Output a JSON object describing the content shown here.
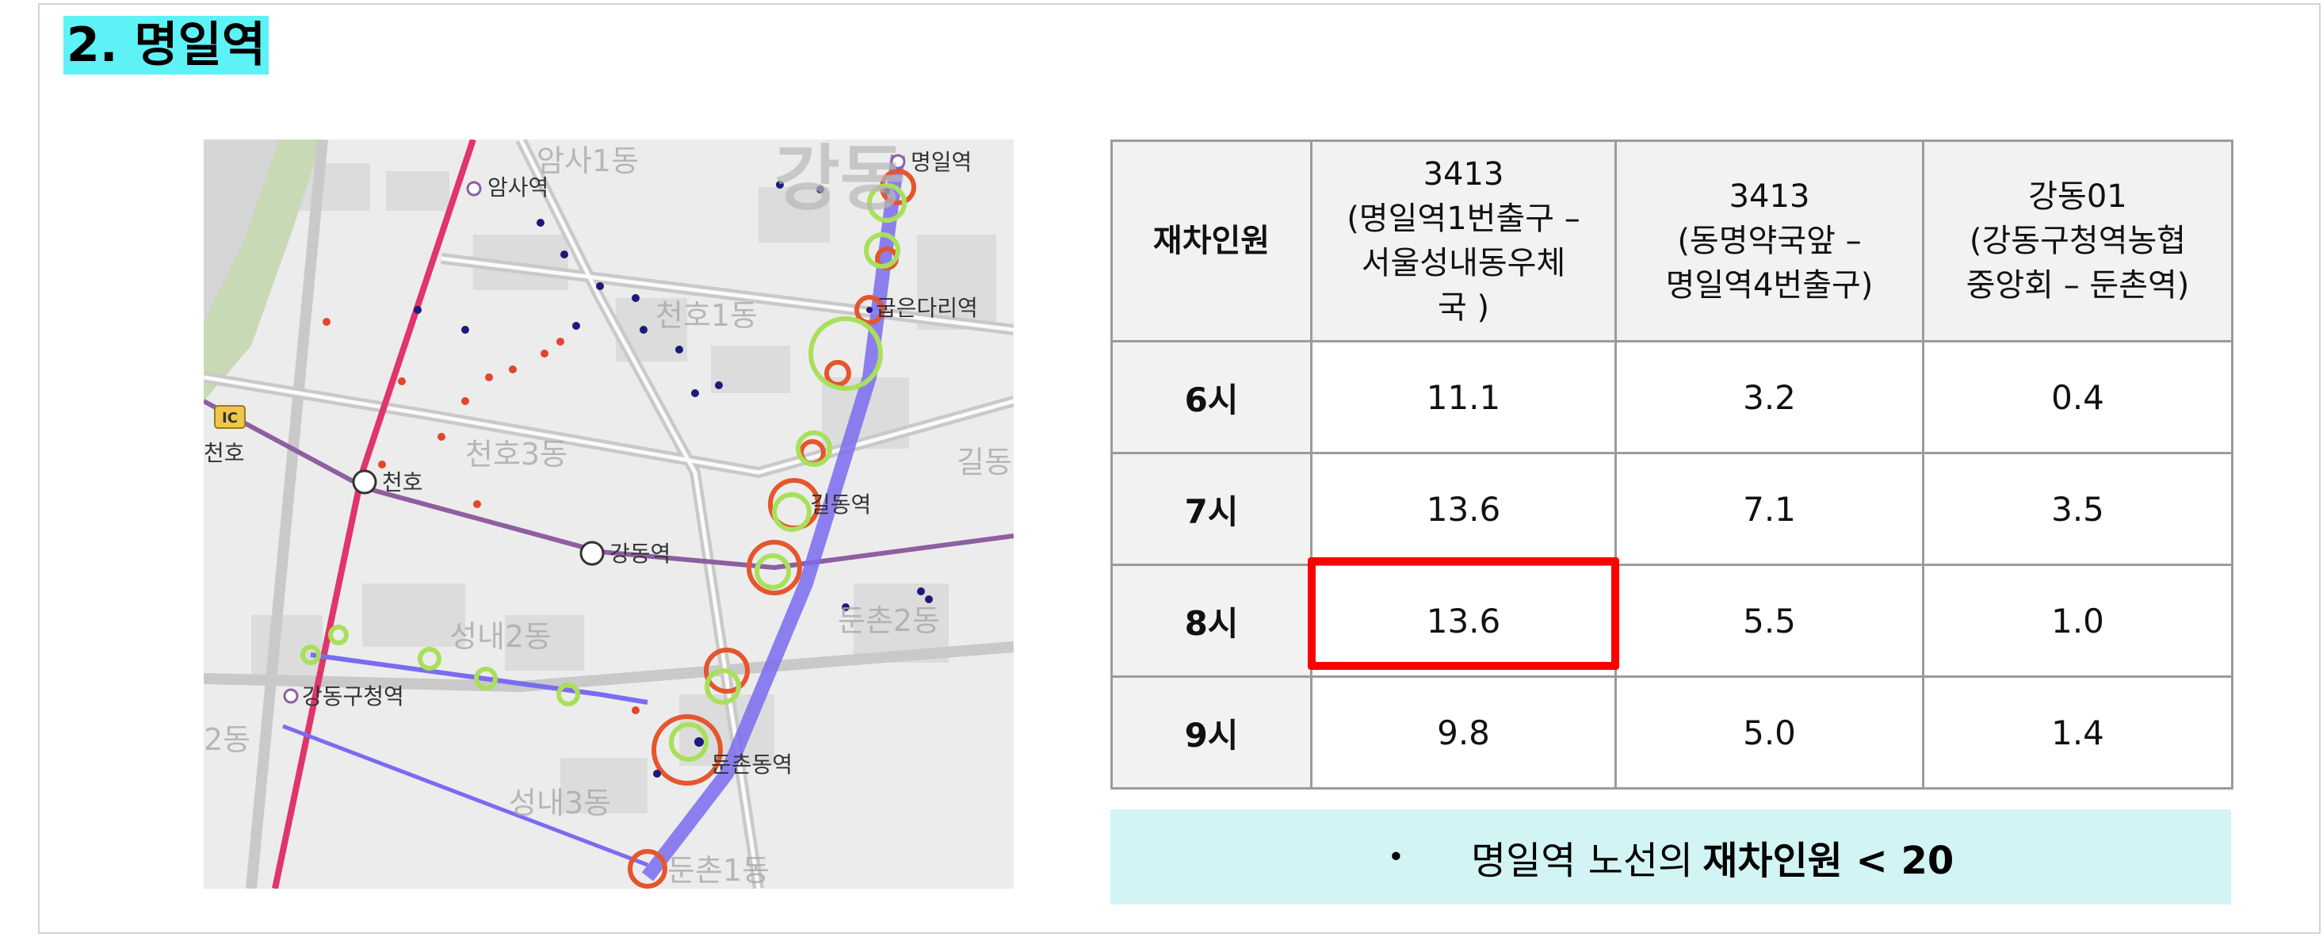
{
  "section_title": "2. 명일역",
  "map": {
    "labels": {
      "myeongil": "명일역",
      "amsa": "암사역",
      "gubeundari": "굽은다리역",
      "cheonho": "천호",
      "cheonho_left": "천호",
      "gildong": "길동역",
      "gangdong": "강동역",
      "gangdonggu_office": "강동구청역",
      "dunchon": "둔촌동역",
      "dong_amsa1": "암사1동",
      "dong_cheonho1": "천호1동",
      "dong_cheonho3": "천호3동",
      "dong_seongnae2": "성내2동",
      "dong_seongnae3": "성내3동",
      "dong_dunchon1": "둔촌1동",
      "dong_gil": "길동",
      "dong_dunchon2": "둔촌2동",
      "dong_left": "2동",
      "ic": "IC",
      "gangdong_big": "강동"
    }
  },
  "table": {
    "header": {
      "row_label": "재차인원",
      "col1_line1": "3413",
      "col1_line2": "(명일역1번출구 –",
      "col1_line3": "서울성내동우체",
      "col1_line4": "국 )",
      "col2_line1": "3413",
      "col2_line2": "(동명약국앞 –",
      "col2_line3": "명일역4번출구)",
      "col3_line1": "강동01",
      "col3_line2": "(강동구청역농협",
      "col3_line3": "중앙회 – 둔촌역)"
    },
    "rows": [
      {
        "hour": "6시",
        "v1": "11.1",
        "v2": "3.2",
        "v3": "0.4"
      },
      {
        "hour": "7시",
        "v1": "13.6",
        "v2": "7.1",
        "v3": "3.5"
      },
      {
        "hour": "8시",
        "v1": "13.6",
        "v2": "5.5",
        "v3": "1.0"
      },
      {
        "hour": "9시",
        "v1": "9.8",
        "v2": "5.0",
        "v3": "1.4"
      }
    ]
  },
  "note": {
    "bullet": "•",
    "text_plain": "명일역 노선의",
    "text_bold": "재차인원 < 20"
  },
  "colors": {
    "title_highlight": "#5df2f6",
    "note_background": "#d3f4f4",
    "highlight_border": "#ff0000",
    "route_blue": "#7a6cf0",
    "line5_purple": "#8e5fa0",
    "line8_pink": "#e0356a"
  }
}
